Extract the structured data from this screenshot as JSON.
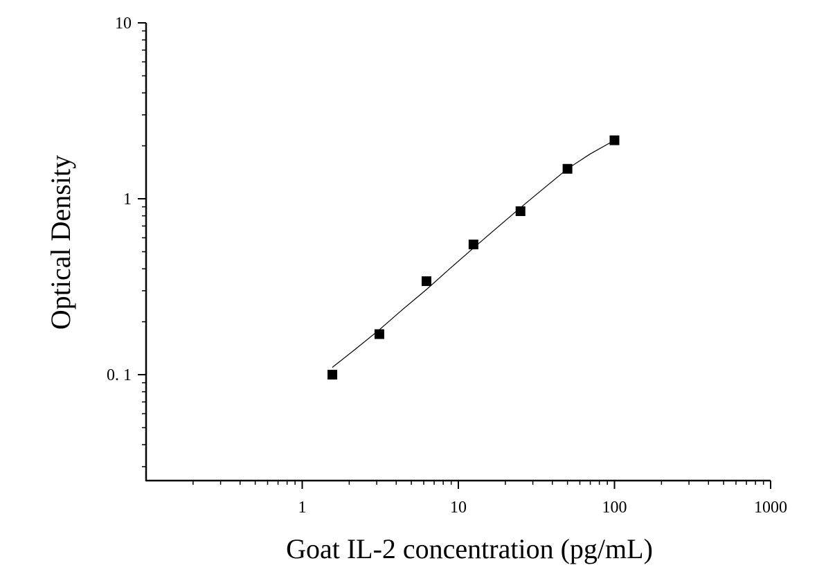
{
  "chart_data": {
    "type": "scatter",
    "title": "",
    "xlabel": "Goat IL-2 concentration (pg/mL)",
    "ylabel": "Optical Density",
    "x_scale": "log",
    "y_scale": "log",
    "xlim": [
      0.1,
      1000
    ],
    "ylim": [
      0.025,
      10
    ],
    "x_ticks": [
      {
        "value": 1,
        "label": "1"
      },
      {
        "value": 10,
        "label": "10"
      },
      {
        "value": 100,
        "label": "100"
      },
      {
        "value": 1000,
        "label": "1000"
      }
    ],
    "y_ticks": [
      {
        "value": 0.1,
        "label": "0. 1"
      },
      {
        "value": 1,
        "label": "1"
      },
      {
        "value": 10,
        "label": "10"
      }
    ],
    "grid": false,
    "legend": "none",
    "series": [
      {
        "marker": "square",
        "color": "#000000",
        "x": [
          1.56,
          3.12,
          6.25,
          12.5,
          25,
          50,
          100
        ],
        "y": [
          0.1,
          0.17,
          0.34,
          0.55,
          0.85,
          1.48,
          2.15
        ]
      }
    ],
    "fit_curve": {
      "color": "#000000",
      "x": [
        1.56,
        2.2,
        3.12,
        4.4,
        6.25,
        8.8,
        12.5,
        17.7,
        25,
        35,
        50,
        70,
        100
      ],
      "y": [
        0.11,
        0.14,
        0.18,
        0.235,
        0.305,
        0.4,
        0.525,
        0.685,
        0.89,
        1.14,
        1.48,
        1.8,
        2.15
      ]
    }
  }
}
